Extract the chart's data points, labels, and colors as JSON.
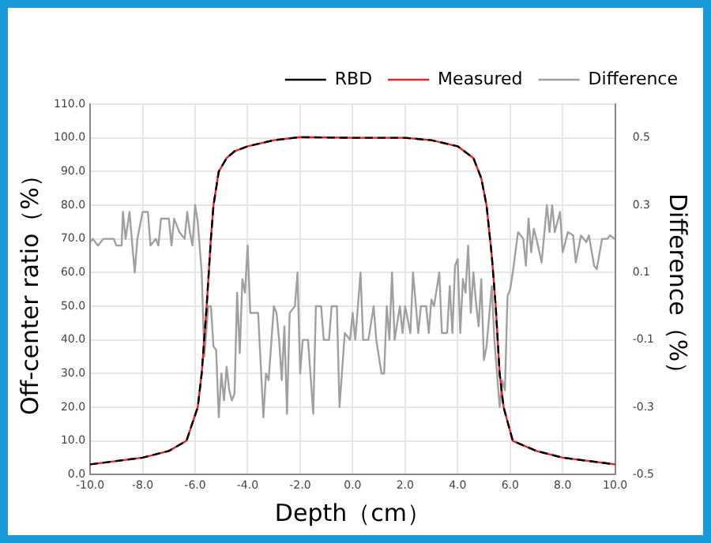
{
  "chart_data": {
    "type": "line",
    "xlabel": "Depth（cm）",
    "ylabel": "Off-center ratio（%）",
    "y2label": "Difference（%）",
    "xlim": [
      -10,
      10
    ],
    "xticks": [
      {
        "value": -10,
        "label": "-10.0"
      },
      {
        "value": -8,
        "label": "-8.0"
      },
      {
        "value": -6,
        "label": "-6.0"
      },
      {
        "value": -4,
        "label": "-4.0"
      },
      {
        "value": -2,
        "label": "-2.0"
      },
      {
        "value": 0,
        "label": "0.0"
      },
      {
        "value": 2,
        "label": "2.0"
      },
      {
        "value": 4,
        "label": "4.0"
      },
      {
        "value": 6,
        "label": "6.0"
      },
      {
        "value": 8,
        "label": "8.0"
      },
      {
        "value": 10,
        "label": "10.0"
      }
    ],
    "ylim": [
      0,
      110
    ],
    "yticks": [
      {
        "value": 0,
        "label": "0.0"
      },
      {
        "value": 10,
        "label": "10.0"
      },
      {
        "value": 20,
        "label": "20.0"
      },
      {
        "value": 30,
        "label": "30.0"
      },
      {
        "value": 40,
        "label": "40.0"
      },
      {
        "value": 50,
        "label": "50.0"
      },
      {
        "value": 60,
        "label": "60.0"
      },
      {
        "value": 70,
        "label": "70.0"
      },
      {
        "value": 80,
        "label": "80.0"
      },
      {
        "value": 90,
        "label": "90.0"
      },
      {
        "value": 100,
        "label": "100.0"
      },
      {
        "value": 110,
        "label": "110.0"
      }
    ],
    "y2lim": [
      -0.5,
      0.6
    ],
    "y2ticks": [
      -0.5,
      -0.3,
      -0.1,
      0.1,
      0.3,
      0.5
    ],
    "grid": true,
    "legend": "top right",
    "marker": "none",
    "series": [
      {
        "name": "RBD",
        "color": "#000000",
        "line_style": "dashed",
        "x": [
          -10,
          -9,
          -8,
          -7,
          -6.33,
          -5.9,
          -5.75,
          -5.56,
          -5.4,
          -5.3,
          -5.1,
          -4.8,
          -4.5,
          -4,
          -3,
          -2,
          0,
          2,
          3,
          4,
          4.6,
          4.9,
          5.1,
          5.3,
          5.45,
          5.6,
          5.75,
          6.1,
          7,
          8,
          9,
          10
        ],
        "values": [
          3,
          4,
          5,
          7,
          10,
          20,
          30,
          50,
          70,
          80,
          90,
          94,
          96,
          97.5,
          99.3,
          100.2,
          100,
          100,
          99.3,
          97.5,
          94,
          88,
          80,
          65,
          50,
          30,
          20,
          10,
          7,
          5,
          4,
          3
        ]
      },
      {
        "name": "Measured",
        "color": "#e8202a",
        "line_style": "solid",
        "x": [
          -10,
          -9,
          -8,
          -7,
          -6.33,
          -5.9,
          -5.75,
          -5.56,
          -5.4,
          -5.3,
          -5.1,
          -4.8,
          -4.5,
          -4,
          -3,
          -2,
          0,
          2,
          3,
          4,
          4.6,
          4.9,
          5.1,
          5.3,
          5.45,
          5.6,
          5.75,
          6.1,
          7,
          8,
          9,
          10
        ],
        "values": [
          3,
          4,
          5,
          7,
          10,
          20,
          30,
          50,
          70,
          80,
          90,
          94,
          96,
          97.5,
          99.3,
          100.2,
          100,
          100,
          99.3,
          97.5,
          94,
          88,
          80,
          65,
          50,
          30,
          20,
          10,
          7,
          5,
          4,
          3
        ]
      },
      {
        "name": "Difference",
        "color": "#a0a0a0",
        "line_style": "solid",
        "axis": "y2",
        "x": [
          -10,
          -9.9,
          -9.7,
          -9.5,
          -9.1,
          -9,
          -8.8,
          -8.75,
          -8.65,
          -8.5,
          -8.3,
          -8.2,
          -8,
          -7.8,
          -7.7,
          -7.5,
          -7.4,
          -7.3,
          -7,
          -6.9,
          -6.8,
          -6.6,
          -6.4,
          -6.3,
          -6.2,
          -6.1,
          -6,
          -5.9,
          -5.75,
          -5.65,
          -5.5,
          -5.4,
          -5.3,
          -5.2,
          -5.1,
          -5,
          -4.9,
          -4.8,
          -4.7,
          -4.6,
          -4.5,
          -4.4,
          -4.3,
          -4.2,
          -4.1,
          -4,
          -3.9,
          -3.6,
          -3.4,
          -3.3,
          -3.2,
          -3,
          -2.9,
          -2.8,
          -2.7,
          -2.6,
          -2.5,
          -2.4,
          -2.2,
          -2.1,
          -2,
          -1.9,
          -1.7,
          -1.5,
          -1.4,
          -1.2,
          -1.1,
          -0.9,
          -0.8,
          -0.6,
          -0.5,
          -0.3,
          -0.1,
          0,
          0.1,
          0.3,
          0.4,
          0.6,
          0.8,
          0.9,
          1.1,
          1.2,
          1.3,
          1.4,
          1.5,
          1.6,
          1.8,
          1.9,
          2,
          2.2,
          2.3,
          2.5,
          2.6,
          2.8,
          2.9,
          3,
          3.1,
          3.3,
          3.4,
          3.6,
          3.7,
          3.8,
          3.9,
          4,
          4.1,
          4.2,
          4.3,
          4.4,
          4.5,
          4.6,
          4.7,
          4.8,
          4.9,
          5,
          5.1,
          5.3,
          5.4,
          5.5,
          5.6,
          5.7,
          5.8,
          5.9,
          6,
          6.1,
          6.3,
          6.5,
          6.6,
          6.7,
          6.8,
          6.9,
          7,
          7.2,
          7.4,
          7.5,
          7.6,
          7.7,
          7.9,
          8,
          8.2,
          8.4,
          8.5,
          8.7,
          8.9,
          9,
          9.2,
          9.3,
          9.5,
          9.7,
          9.8,
          10
        ],
        "values": [
          0.19,
          0.2,
          0.18,
          0.2,
          0.2,
          0.18,
          0.18,
          0.28,
          0.2,
          0.28,
          0.1,
          0.2,
          0.28,
          0.28,
          0.18,
          0.2,
          0.18,
          0.26,
          0.26,
          0.18,
          0.26,
          0.22,
          0.2,
          0.28,
          0.22,
          0.18,
          0.3,
          0.25,
          0.1,
          -0.15,
          0,
          0,
          -0.12,
          -0.13,
          -0.33,
          -0.2,
          -0.28,
          -0.18,
          -0.25,
          -0.28,
          -0.26,
          0.04,
          -0.14,
          0.08,
          0.04,
          0.18,
          -0.02,
          -0.02,
          -0.33,
          -0.2,
          -0.22,
          0,
          -0.02,
          -0.1,
          -0.22,
          -0.06,
          -0.32,
          -0.02,
          0,
          0.1,
          -0.2,
          -0.1,
          -0.1,
          -0.32,
          0,
          0,
          -0.1,
          -0.1,
          0,
          0,
          -0.3,
          -0.08,
          -0.1,
          -0.02,
          -0.1,
          0.1,
          -0.1,
          -0.1,
          0,
          -0.1,
          -0.2,
          -0.2,
          0,
          -0.1,
          0.1,
          -0.1,
          0,
          -0.08,
          0,
          -0.08,
          0.1,
          -0.08,
          0,
          0,
          -0.08,
          0.02,
          0,
          0.1,
          -0.08,
          -0.08,
          0.06,
          -0.08,
          0.12,
          0.14,
          -0.08,
          0.08,
          0.04,
          0.18,
          -0.02,
          0.1,
          0.01,
          -0.06,
          0.08,
          -0.16,
          -0.12,
          0.06,
          -0.1,
          -0.2,
          -0.3,
          -0.22,
          -0.25,
          0.03,
          0.05,
          0.1,
          0.22,
          0.2,
          0.12,
          0.26,
          0.16,
          0.23,
          0.2,
          0.13,
          0.3,
          0.22,
          0.3,
          0.22,
          0.28,
          0.16,
          0.22,
          0.21,
          0.13,
          0.21,
          0.19,
          0.21,
          0.12,
          0.11,
          0.2,
          0.2,
          0.21,
          0.2
        ]
      }
    ]
  }
}
